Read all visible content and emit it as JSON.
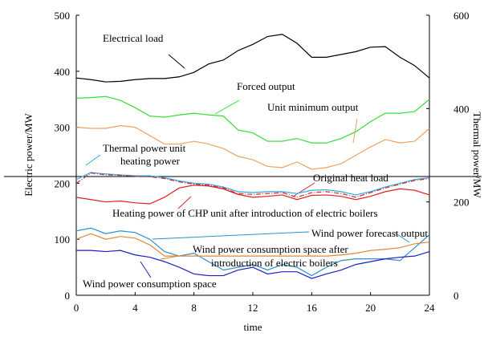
{
  "chart_data": {
    "type": "line",
    "xlabel": "time",
    "ylabel": "Electric power/MW",
    "y2label": "Thermal power/MW",
    "x": [
      0,
      1,
      2,
      3,
      4,
      5,
      6,
      7,
      8,
      9,
      10,
      11,
      12,
      13,
      14,
      15,
      16,
      17,
      18,
      19,
      20,
      21,
      22,
      23,
      24
    ],
    "xlim": [
      0,
      24
    ],
    "xticks": [
      0,
      4,
      8,
      12,
      16,
      20,
      24
    ],
    "ylim": [
      0,
      500
    ],
    "yticks": [
      0,
      100,
      200,
      300,
      400,
      500
    ],
    "y2lim": [
      0,
      600
    ],
    "y2ticks": [
      0,
      200,
      400,
      600
    ],
    "series": [
      {
        "name": "Electrical load",
        "color": "#000000",
        "values": [
          388,
          385,
          381,
          382,
          385,
          387,
          387,
          390,
          398,
          413,
          420,
          437,
          448,
          462,
          466,
          450,
          425,
          425,
          430,
          435,
          443,
          444,
          425,
          410,
          388
        ]
      },
      {
        "name": "Forced output",
        "color": "#33dd33",
        "values": [
          352,
          353,
          355,
          348,
          335,
          320,
          318,
          322,
          325,
          322,
          320,
          295,
          290,
          275,
          275,
          280,
          272,
          272,
          280,
          292,
          310,
          325,
          325,
          328,
          350
        ]
      },
      {
        "name": "Unit minimum output",
        "color": "#f0a060",
        "values": [
          300,
          298,
          298,
          303,
          300,
          285,
          270,
          270,
          275,
          270,
          262,
          248,
          242,
          230,
          228,
          238,
          225,
          228,
          235,
          250,
          265,
          278,
          272,
          275,
          298
        ]
      },
      {
        "name": "Thermal power unit heating power",
        "color": "#30a8e0",
        "axis": "y2",
        "values": [
          248,
          263,
          260,
          258,
          256,
          256,
          252,
          245,
          240,
          238,
          232,
          222,
          220,
          222,
          222,
          218,
          225,
          226,
          222,
          215,
          222,
          232,
          240,
          248,
          252
        ]
      },
      {
        "name": "Original heat load",
        "color": "#c03030",
        "axis": "y2",
        "dash": "6 2 1 2",
        "values": [
          240,
          262,
          258,
          257,
          255,
          254,
          250,
          243,
          238,
          236,
          230,
          218,
          216,
          218,
          220,
          210,
          220,
          222,
          218,
          210,
          220,
          230,
          238,
          246,
          250
        ]
      },
      {
        "name": "Heating power of CHP unit after introduction of electric boilers",
        "color": "#e02020",
        "axis": "y2",
        "values": [
          210,
          205,
          200,
          202,
          198,
          196,
          210,
          230,
          236,
          234,
          228,
          216,
          210,
          212,
          215,
          205,
          214,
          215,
          212,
          205,
          212,
          222,
          228,
          225,
          215
        ]
      },
      {
        "name": "Wind power forecast output",
        "color": "#2a90d0",
        "values": [
          115,
          120,
          110,
          115,
          112,
          100,
          78,
          70,
          75,
          60,
          45,
          50,
          55,
          45,
          55,
          50,
          35,
          50,
          62,
          65,
          65,
          65,
          62,
          85,
          108
        ]
      },
      {
        "name": "Wind power consumption space after introduction of electric boilers",
        "color": "#e08830",
        "values": [
          100,
          110,
          100,
          105,
          102,
          90,
          70,
          70,
          70,
          70,
          70,
          70,
          70,
          70,
          70,
          70,
          70,
          70,
          72,
          75,
          80,
          82,
          85,
          92,
          95
        ]
      },
      {
        "name": "Wind power consumption space",
        "color": "#2020c0",
        "values": [
          80,
          80,
          78,
          80,
          72,
          68,
          60,
          50,
          38,
          35,
          35,
          45,
          50,
          38,
          42,
          42,
          30,
          38,
          45,
          55,
          60,
          65,
          68,
          70,
          78
        ]
      }
    ],
    "annotations": [
      "Electrical load",
      "Forced output",
      "Unit minimum output",
      "Thermal power unit",
      "heating power",
      "Original heat load",
      "Heating power of CHP unit after introduction of electric boilers",
      "Wind power forecast output",
      "Wind power consumption space after",
      "introduction of electric boilers",
      "Wind power consumption space"
    ]
  }
}
